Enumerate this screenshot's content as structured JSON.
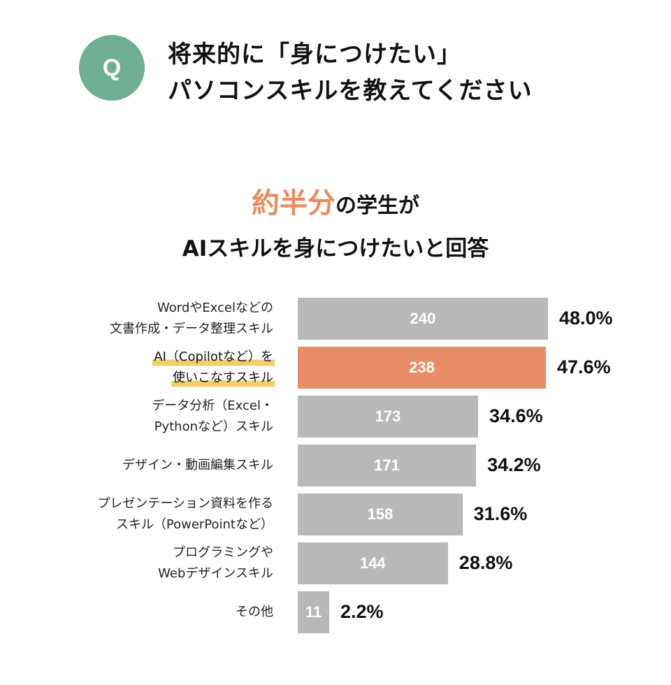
{
  "question": {
    "badge": "Q",
    "line1": "将来的に「身につけたい」",
    "line2": "パソコンスキルを教えてください"
  },
  "headline": {
    "accent": "約半分",
    "line1_rest": "の学生が",
    "line2": "AIスキルを身につけたいと回答"
  },
  "colors": {
    "bar": "#b8b8b8",
    "highlight_bar": "#e98c68",
    "badge": "#6fae93",
    "accent_text": "#e98b5f",
    "label_highlight": "#f2cd6c"
  },
  "chart_data": {
    "type": "bar",
    "orientation": "horizontal",
    "categories": [
      [
        "WordやExcelなどの",
        "文書作成・データ整理スキル"
      ],
      [
        "AI（Copilotなど）を",
        "使いこなすスキル"
      ],
      [
        "データ分析（Excel・",
        "Pythonなど）スキル"
      ],
      [
        "デザイン・動画編集スキル"
      ],
      [
        "プレゼンテーション資料を作る",
        "スキル（PowerPointなど）"
      ],
      [
        "プログラミングや",
        "Webデザインスキル"
      ],
      [
        "その他"
      ]
    ],
    "counts": [
      "240",
      "238",
      "173",
      "171",
      "158",
      "144",
      "11"
    ],
    "percents": [
      "48.0%",
      "47.6%",
      "34.6%",
      "34.2%",
      "31.6%",
      "28.8%",
      "2.2%"
    ],
    "values": [
      48.0,
      47.6,
      34.6,
      34.2,
      31.6,
      28.8,
      2.2
    ],
    "highlighted_index": 1
  }
}
